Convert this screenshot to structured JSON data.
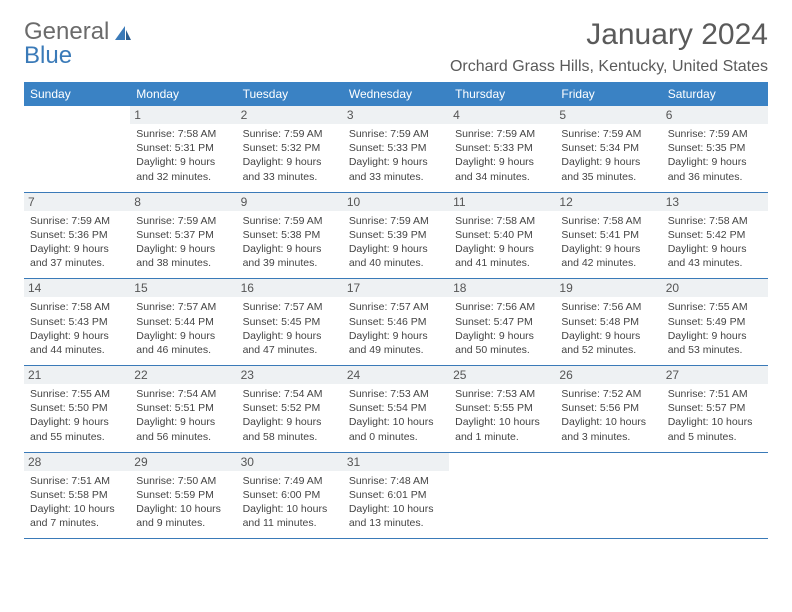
{
  "logo": {
    "part1": "General",
    "part2": "Blue"
  },
  "title": "January 2024",
  "location": "Orchard Grass Hills, Kentucky, United States",
  "colors": {
    "header_bg": "#3a82c4",
    "header_text": "#ffffff",
    "daynum_bg": "#eef1f3",
    "border": "#3a7ab8",
    "logo_gray": "#6b6b6b",
    "logo_blue": "#3a7ab8"
  },
  "day_names": [
    "Sunday",
    "Monday",
    "Tuesday",
    "Wednesday",
    "Thursday",
    "Friday",
    "Saturday"
  ],
  "weeks": [
    [
      {
        "num": "",
        "sunrise": "",
        "sunset": "",
        "daylight": ""
      },
      {
        "num": "1",
        "sunrise": "Sunrise: 7:58 AM",
        "sunset": "Sunset: 5:31 PM",
        "daylight": "Daylight: 9 hours and 32 minutes."
      },
      {
        "num": "2",
        "sunrise": "Sunrise: 7:59 AM",
        "sunset": "Sunset: 5:32 PM",
        "daylight": "Daylight: 9 hours and 33 minutes."
      },
      {
        "num": "3",
        "sunrise": "Sunrise: 7:59 AM",
        "sunset": "Sunset: 5:33 PM",
        "daylight": "Daylight: 9 hours and 33 minutes."
      },
      {
        "num": "4",
        "sunrise": "Sunrise: 7:59 AM",
        "sunset": "Sunset: 5:33 PM",
        "daylight": "Daylight: 9 hours and 34 minutes."
      },
      {
        "num": "5",
        "sunrise": "Sunrise: 7:59 AM",
        "sunset": "Sunset: 5:34 PM",
        "daylight": "Daylight: 9 hours and 35 minutes."
      },
      {
        "num": "6",
        "sunrise": "Sunrise: 7:59 AM",
        "sunset": "Sunset: 5:35 PM",
        "daylight": "Daylight: 9 hours and 36 minutes."
      }
    ],
    [
      {
        "num": "7",
        "sunrise": "Sunrise: 7:59 AM",
        "sunset": "Sunset: 5:36 PM",
        "daylight": "Daylight: 9 hours and 37 minutes."
      },
      {
        "num": "8",
        "sunrise": "Sunrise: 7:59 AM",
        "sunset": "Sunset: 5:37 PM",
        "daylight": "Daylight: 9 hours and 38 minutes."
      },
      {
        "num": "9",
        "sunrise": "Sunrise: 7:59 AM",
        "sunset": "Sunset: 5:38 PM",
        "daylight": "Daylight: 9 hours and 39 minutes."
      },
      {
        "num": "10",
        "sunrise": "Sunrise: 7:59 AM",
        "sunset": "Sunset: 5:39 PM",
        "daylight": "Daylight: 9 hours and 40 minutes."
      },
      {
        "num": "11",
        "sunrise": "Sunrise: 7:58 AM",
        "sunset": "Sunset: 5:40 PM",
        "daylight": "Daylight: 9 hours and 41 minutes."
      },
      {
        "num": "12",
        "sunrise": "Sunrise: 7:58 AM",
        "sunset": "Sunset: 5:41 PM",
        "daylight": "Daylight: 9 hours and 42 minutes."
      },
      {
        "num": "13",
        "sunrise": "Sunrise: 7:58 AM",
        "sunset": "Sunset: 5:42 PM",
        "daylight": "Daylight: 9 hours and 43 minutes."
      }
    ],
    [
      {
        "num": "14",
        "sunrise": "Sunrise: 7:58 AM",
        "sunset": "Sunset: 5:43 PM",
        "daylight": "Daylight: 9 hours and 44 minutes."
      },
      {
        "num": "15",
        "sunrise": "Sunrise: 7:57 AM",
        "sunset": "Sunset: 5:44 PM",
        "daylight": "Daylight: 9 hours and 46 minutes."
      },
      {
        "num": "16",
        "sunrise": "Sunrise: 7:57 AM",
        "sunset": "Sunset: 5:45 PM",
        "daylight": "Daylight: 9 hours and 47 minutes."
      },
      {
        "num": "17",
        "sunrise": "Sunrise: 7:57 AM",
        "sunset": "Sunset: 5:46 PM",
        "daylight": "Daylight: 9 hours and 49 minutes."
      },
      {
        "num": "18",
        "sunrise": "Sunrise: 7:56 AM",
        "sunset": "Sunset: 5:47 PM",
        "daylight": "Daylight: 9 hours and 50 minutes."
      },
      {
        "num": "19",
        "sunrise": "Sunrise: 7:56 AM",
        "sunset": "Sunset: 5:48 PM",
        "daylight": "Daylight: 9 hours and 52 minutes."
      },
      {
        "num": "20",
        "sunrise": "Sunrise: 7:55 AM",
        "sunset": "Sunset: 5:49 PM",
        "daylight": "Daylight: 9 hours and 53 minutes."
      }
    ],
    [
      {
        "num": "21",
        "sunrise": "Sunrise: 7:55 AM",
        "sunset": "Sunset: 5:50 PM",
        "daylight": "Daylight: 9 hours and 55 minutes."
      },
      {
        "num": "22",
        "sunrise": "Sunrise: 7:54 AM",
        "sunset": "Sunset: 5:51 PM",
        "daylight": "Daylight: 9 hours and 56 minutes."
      },
      {
        "num": "23",
        "sunrise": "Sunrise: 7:54 AM",
        "sunset": "Sunset: 5:52 PM",
        "daylight": "Daylight: 9 hours and 58 minutes."
      },
      {
        "num": "24",
        "sunrise": "Sunrise: 7:53 AM",
        "sunset": "Sunset: 5:54 PM",
        "daylight": "Daylight: 10 hours and 0 minutes."
      },
      {
        "num": "25",
        "sunrise": "Sunrise: 7:53 AM",
        "sunset": "Sunset: 5:55 PM",
        "daylight": "Daylight: 10 hours and 1 minute."
      },
      {
        "num": "26",
        "sunrise": "Sunrise: 7:52 AM",
        "sunset": "Sunset: 5:56 PM",
        "daylight": "Daylight: 10 hours and 3 minutes."
      },
      {
        "num": "27",
        "sunrise": "Sunrise: 7:51 AM",
        "sunset": "Sunset: 5:57 PM",
        "daylight": "Daylight: 10 hours and 5 minutes."
      }
    ],
    [
      {
        "num": "28",
        "sunrise": "Sunrise: 7:51 AM",
        "sunset": "Sunset: 5:58 PM",
        "daylight": "Daylight: 10 hours and 7 minutes."
      },
      {
        "num": "29",
        "sunrise": "Sunrise: 7:50 AM",
        "sunset": "Sunset: 5:59 PM",
        "daylight": "Daylight: 10 hours and 9 minutes."
      },
      {
        "num": "30",
        "sunrise": "Sunrise: 7:49 AM",
        "sunset": "Sunset: 6:00 PM",
        "daylight": "Daylight: 10 hours and 11 minutes."
      },
      {
        "num": "31",
        "sunrise": "Sunrise: 7:48 AM",
        "sunset": "Sunset: 6:01 PM",
        "daylight": "Daylight: 10 hours and 13 minutes."
      },
      {
        "num": "",
        "sunrise": "",
        "sunset": "",
        "daylight": ""
      },
      {
        "num": "",
        "sunrise": "",
        "sunset": "",
        "daylight": ""
      },
      {
        "num": "",
        "sunrise": "",
        "sunset": "",
        "daylight": ""
      }
    ]
  ]
}
